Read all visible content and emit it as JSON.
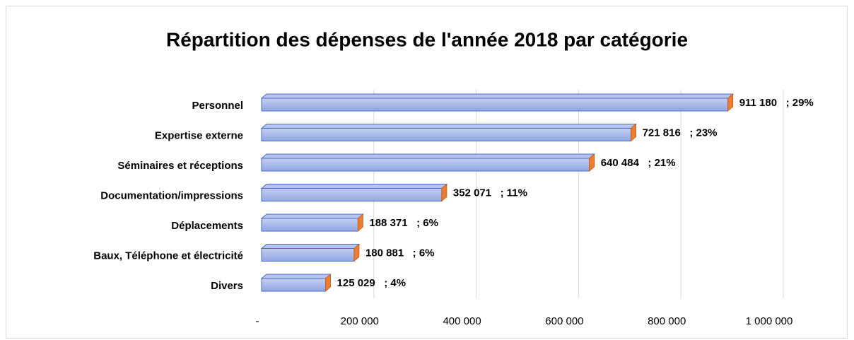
{
  "chart_data": {
    "type": "bar",
    "orientation": "horizontal",
    "title": "Répartition des dépenses de l'année 2018 par catégorie",
    "categories": [
      "Personnel",
      "Expertise externe",
      "Séminaires et réceptions",
      "Documentation/impressions",
      "Déplacements",
      "Baux, Téléphone et électricité",
      "Divers"
    ],
    "values": [
      911180,
      721816,
      640484,
      352071,
      188371,
      180881,
      125029
    ],
    "value_labels": [
      "911 180   ; 29%",
      "721 816   ; 23%",
      "640 484   ; 21%",
      "352 071   ; 11%",
      "188 371   ; 6%",
      "180 881   ; 6%",
      "125 029   ; 4%"
    ],
    "color": "#a9b9ea",
    "side_color": "#ed7d31",
    "xlim": [
      0,
      1000000
    ],
    "xticks": [
      {
        "value": 0,
        "label": "-"
      },
      {
        "value": 200000,
        "label": "200 000"
      },
      {
        "value": 400000,
        "label": "400 000"
      },
      {
        "value": 600000,
        "label": "600 000"
      },
      {
        "value": 800000,
        "label": "800 000"
      },
      {
        "value": 1000000,
        "label": "1 000 000"
      }
    ],
    "grid": true
  }
}
